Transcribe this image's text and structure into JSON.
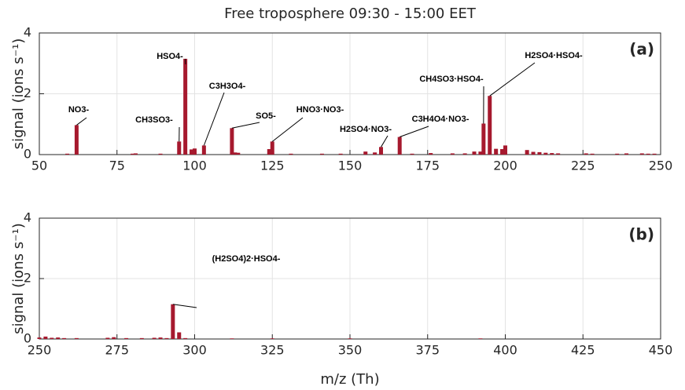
{
  "chart_data": [
    {
      "type": "bar",
      "title": "Free troposphere 09:30 - 15:00 EET",
      "panel_label": "(a)",
      "ylabel": "signal (ions s⁻¹)",
      "color": "#a6192e",
      "grid": true,
      "x": [
        59,
        62,
        80,
        81,
        89,
        95,
        97,
        99,
        100,
        103,
        112,
        113,
        114,
        124,
        125,
        131,
        141,
        147,
        155,
        158,
        160,
        166,
        170,
        176,
        183,
        187,
        190,
        192,
        193,
        195,
        197,
        199,
        200,
        207,
        209,
        211,
        213,
        215,
        217,
        226,
        228,
        236,
        239,
        244,
        246,
        248
      ],
      "values": [
        0.03,
        0.97,
        0.03,
        0.04,
        0.03,
        0.43,
        3.15,
        0.17,
        0.2,
        0.3,
        0.87,
        0.07,
        0.06,
        0.18,
        0.43,
        0.03,
        0.03,
        0.03,
        0.1,
        0.07,
        0.25,
        0.58,
        0.03,
        0.05,
        0.04,
        0.04,
        0.1,
        0.1,
        1.02,
        1.93,
        0.19,
        0.18,
        0.3,
        0.15,
        0.09,
        0.08,
        0.06,
        0.05,
        0.04,
        0.04,
        0.03,
        0.03,
        0.04,
        0.04,
        0.03,
        0.03
      ],
      "xlim": [
        50,
        250
      ],
      "xticks": [
        50,
        75,
        100,
        125,
        150,
        175,
        200,
        225,
        250
      ],
      "ylim": [
        0,
        4
      ],
      "yticks": [
        0,
        2,
        4
      ],
      "annotations": [
        {
          "text": "NO3-",
          "x": 62
        },
        {
          "text": "CH3SO3-",
          "x": 95
        },
        {
          "text": "HSO4-",
          "x": 97
        },
        {
          "text": "C3H3O4-",
          "x": 103
        },
        {
          "text": "SO5-",
          "x": 112
        },
        {
          "text": "HNO3·NO3-",
          "x": 125
        },
        {
          "text": "H2SO4·NO3-",
          "x": 160
        },
        {
          "text": "C3H4O4·NO3-",
          "x": 166
        },
        {
          "text": "CH4SO3·HSO4-",
          "x": 193
        },
        {
          "text": "H2SO4·HSO4-",
          "x": 195
        }
      ]
    },
    {
      "type": "bar",
      "panel_label": "(b)",
      "ylabel": "signal (ions s⁻¹)",
      "xlabel": "m/z (Th)",
      "color": "#a6192e",
      "grid": true,
      "x": [
        250,
        252,
        254,
        256,
        258,
        262,
        272,
        274,
        278,
        283,
        287,
        289,
        291,
        293,
        295,
        297,
        312,
        325,
        350,
        392
      ],
      "values": [
        0.05,
        0.08,
        0.04,
        0.05,
        0.03,
        0.03,
        0.04,
        0.06,
        0.03,
        0.03,
        0.04,
        0.05,
        0.03,
        1.15,
        0.22,
        0.03,
        0.02,
        0.02,
        0.02,
        0.02
      ],
      "xlim": [
        250,
        450
      ],
      "xticks": [
        250,
        275,
        300,
        325,
        350,
        375,
        400,
        425,
        450
      ],
      "ylim": [
        0,
        4
      ],
      "yticks": [
        0,
        2,
        4
      ],
      "annotations": [
        {
          "text": "(H2SO4)2·HSO4-",
          "x": 293
        }
      ]
    }
  ]
}
